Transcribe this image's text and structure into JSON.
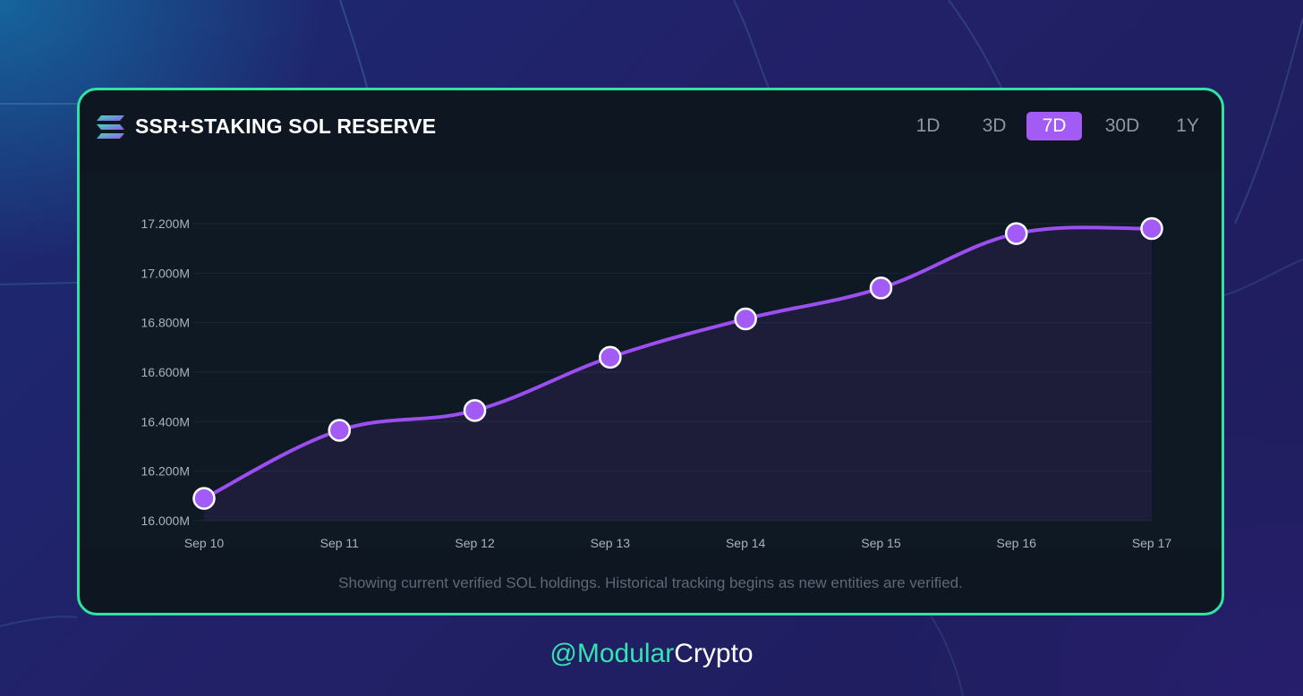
{
  "card": {
    "title": "SSR+STAKING SOL RESERVE",
    "ranges": [
      "1D",
      "3D",
      "7D",
      "30D",
      "1Y"
    ],
    "selected_range": "7D",
    "note": "Showing current verified SOL holdings. Historical tracking begins as new entities are verified."
  },
  "footer": {
    "handle_prefix": "@Modular",
    "handle_suffix": "Crypto"
  },
  "colors": {
    "accent": "#a25cf5",
    "line": "#9b4ff0",
    "card_border": "#2fe3a2",
    "card_bg": "#0e1621",
    "handle_green": "#34e3b0"
  },
  "icons": {
    "logo": "solana-logo-icon"
  },
  "chart_data": {
    "type": "line",
    "title": "SSR+STAKING SOL RESERVE",
    "x": [
      "Sep 10",
      "Sep 11",
      "Sep 12",
      "Sep 13",
      "Sep 14",
      "Sep 15",
      "Sep 16",
      "Sep 17"
    ],
    "y_tick_labels": [
      "16.000M",
      "16.200M",
      "16.400M",
      "16.600M",
      "16.800M",
      "17.000M",
      "17.200M"
    ],
    "y_ticks": [
      16000000,
      16200000,
      16400000,
      16600000,
      16800000,
      17000000,
      17200000
    ],
    "ylim": [
      16000000,
      17200000
    ],
    "series": [
      {
        "values": [
          16090000,
          16365000,
          16445000,
          16660000,
          16815000,
          16940000,
          17160000,
          17180000
        ]
      }
    ],
    "area_fill": true,
    "grid": "horizontal",
    "smooth": true
  }
}
